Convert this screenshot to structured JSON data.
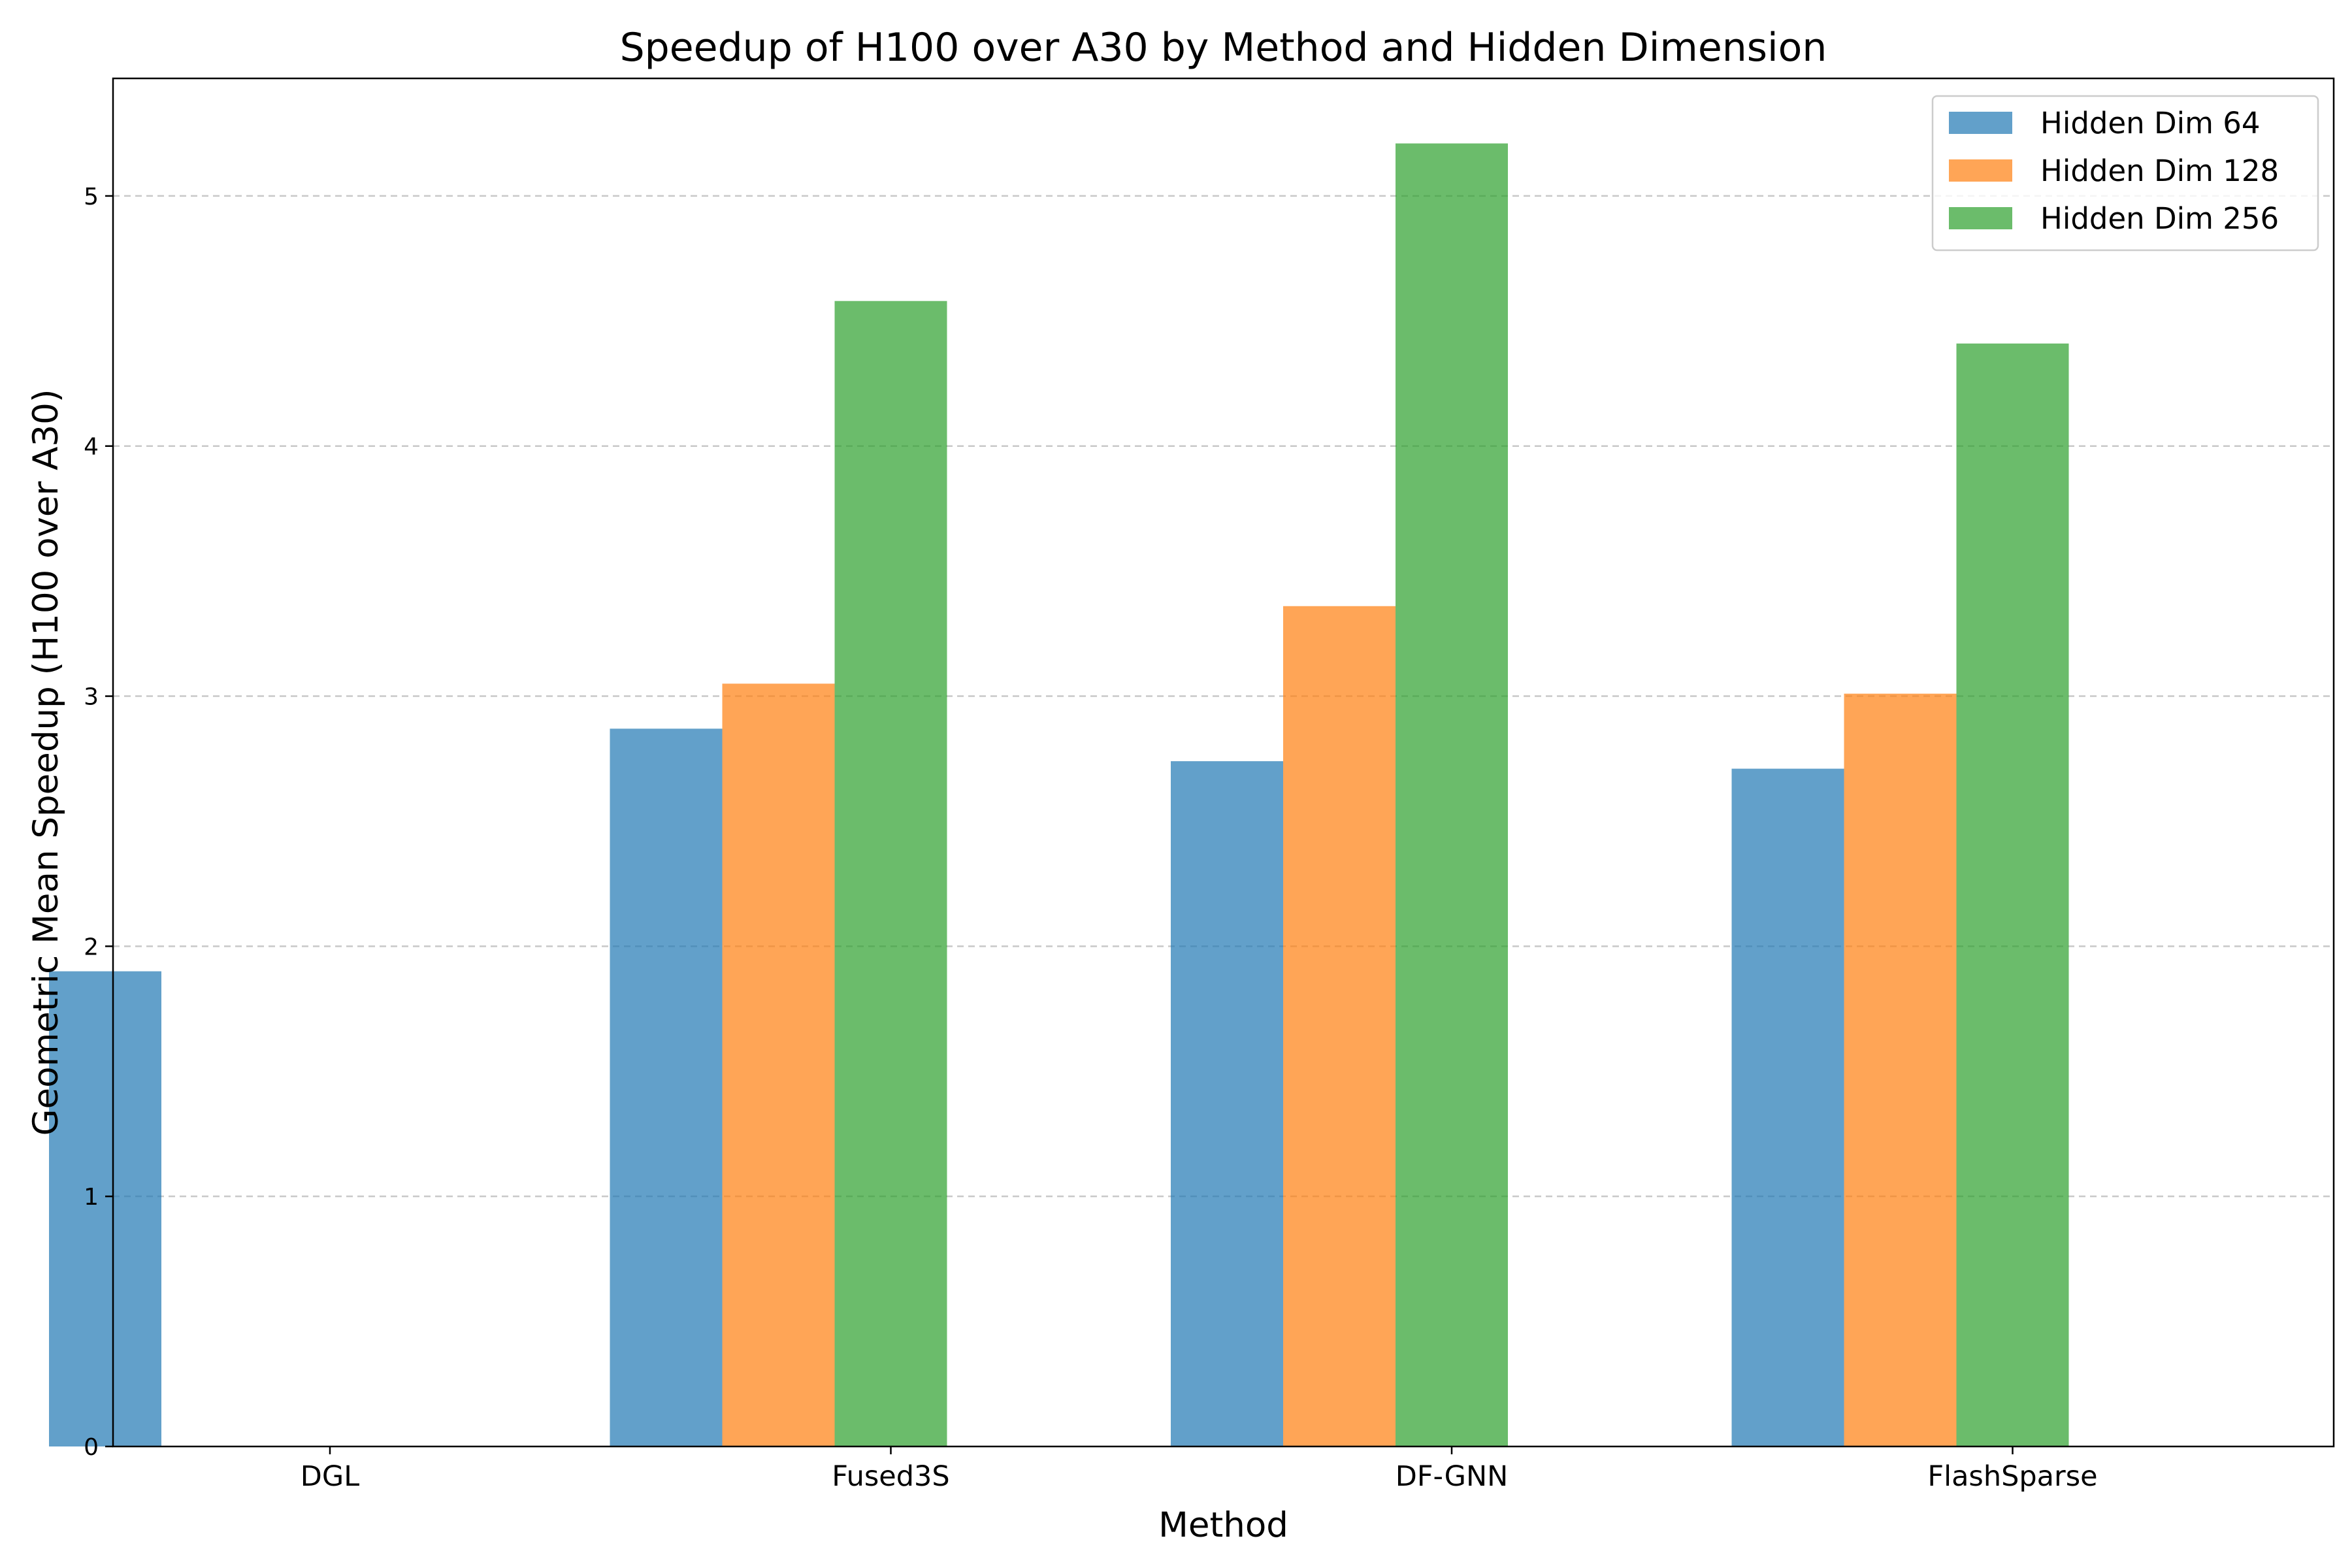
{
  "chart_data": {
    "type": "bar",
    "title": "Speedup of H100 over A30 by Method and Hidden Dimension",
    "xlabel": "Method",
    "ylabel": "Geometric Mean Speedup (H100 over A30)",
    "categories": [
      "DGL",
      "Fused3S",
      "DF-GNN",
      "FlashSparse"
    ],
    "series": [
      {
        "name": "Hidden Dim 64",
        "color": "#1f77b4",
        "values": [
          1.9,
          2.87,
          2.74,
          2.71
        ]
      },
      {
        "name": "Hidden Dim 128",
        "color": "#ff7f0e",
        "values": [
          null,
          3.05,
          3.36,
          3.01
        ]
      },
      {
        "name": "Hidden Dim 256",
        "color": "#2ca02c",
        "values": [
          null,
          4.58,
          5.21,
          4.41
        ]
      }
    ],
    "bar_opacity": 0.7,
    "ylim": [
      0,
      5.47
    ],
    "yticks": [
      0,
      1,
      2,
      3,
      4,
      5
    ],
    "grid": "y-dashed",
    "legend_position": "top-right"
  }
}
